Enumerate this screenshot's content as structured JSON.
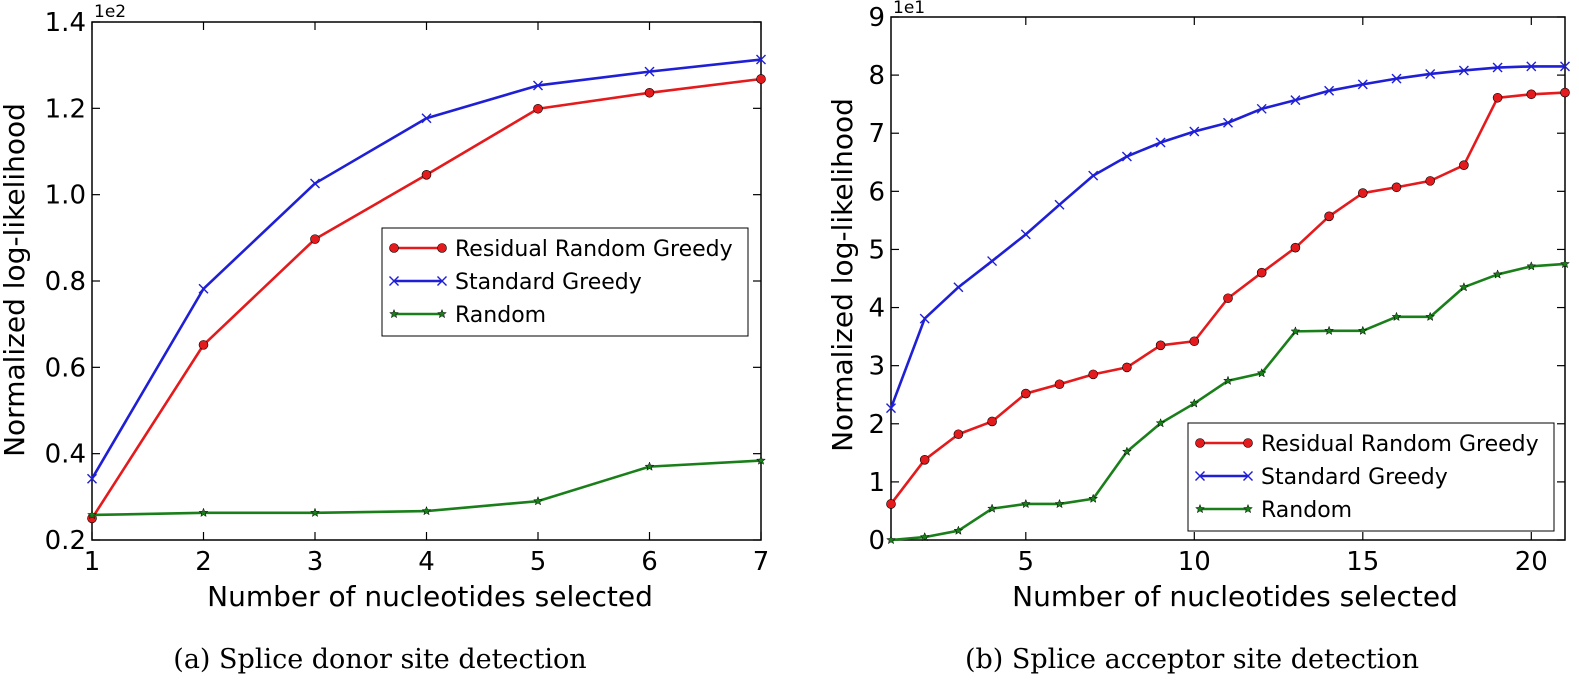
{
  "colors": {
    "residual": "#e41a1c",
    "standard": "#1f1fd6",
    "random": "#1a7f1a"
  },
  "chart_data": [
    {
      "type": "line",
      "caption": "(a) Splice donor site detection",
      "xlabel": "Number of nucleotides selected",
      "ylabel": "Normalized log-likelihood",
      "y_multiplier": "1e2",
      "xlim": [
        1,
        7
      ],
      "ylim": [
        0.2,
        1.4
      ],
      "xticks": [
        1,
        2,
        3,
        4,
        5,
        6,
        7
      ],
      "yticks": [
        0.2,
        0.4,
        0.6,
        0.8,
        1.0,
        1.2,
        1.4
      ],
      "ytick_labels": [
        "0.2",
        "0.4",
        "0.6",
        "0.8",
        "1.0",
        "1.2",
        "1.4"
      ],
      "legend_location": "center-right",
      "x": [
        1,
        2,
        3,
        4,
        5,
        6,
        7
      ],
      "series": [
        {
          "name": "Residual Random Greedy",
          "color": "residual",
          "marker": "circle",
          "values": [
            0.25,
            0.652,
            0.897,
            1.046,
            1.199,
            1.236,
            1.268
          ]
        },
        {
          "name": "Standard Greedy",
          "color": "standard",
          "marker": "x",
          "values": [
            0.342,
            0.782,
            1.026,
            1.177,
            1.253,
            1.285,
            1.313
          ]
        },
        {
          "name": "Random",
          "color": "random",
          "marker": "star",
          "values": [
            0.258,
            0.263,
            0.263,
            0.267,
            0.29,
            0.37,
            0.384
          ]
        }
      ]
    },
    {
      "type": "line",
      "caption": "(b) Splice acceptor site detection",
      "xlabel": "Number of nucleotides selected",
      "ylabel": "Normalized log-likelihood",
      "y_multiplier": "1e1",
      "xlim": [
        1,
        21
      ],
      "ylim": [
        0,
        9
      ],
      "xticks": [
        5,
        10,
        15,
        20
      ],
      "yticks": [
        0,
        1,
        2,
        3,
        4,
        5,
        6,
        7,
        8,
        9
      ],
      "ytick_labels": [
        "0",
        "1",
        "2",
        "3",
        "4",
        "5",
        "6",
        "7",
        "8",
        "9"
      ],
      "legend_location": "lower-right",
      "x": [
        1,
        2,
        3,
        4,
        5,
        6,
        7,
        8,
        9,
        10,
        11,
        12,
        13,
        14,
        15,
        16,
        17,
        18,
        19,
        20,
        21
      ],
      "series": [
        {
          "name": "Residual Random Greedy",
          "color": "residual",
          "marker": "circle",
          "values": [
            0.62,
            1.38,
            1.82,
            2.04,
            2.52,
            2.68,
            2.85,
            2.97,
            3.35,
            3.42,
            4.16,
            4.6,
            5.03,
            5.57,
            5.97,
            6.07,
            6.18,
            6.45,
            7.61,
            7.67,
            7.7
          ]
        },
        {
          "name": "Standard Greedy",
          "color": "standard",
          "marker": "x",
          "values": [
            2.27,
            3.81,
            4.35,
            4.8,
            5.26,
            5.77,
            6.27,
            6.6,
            6.84,
            7.03,
            7.18,
            7.42,
            7.57,
            7.73,
            7.84,
            7.94,
            8.02,
            8.08,
            8.13,
            8.15,
            8.15
          ]
        },
        {
          "name": "Random",
          "color": "random",
          "marker": "star",
          "values": [
            0.0,
            0.05,
            0.16,
            0.54,
            0.62,
            0.62,
            0.71,
            1.52,
            2.01,
            2.35,
            2.74,
            2.87,
            3.59,
            3.6,
            3.6,
            3.84,
            3.84,
            4.35,
            4.57,
            4.71,
            4.75
          ]
        }
      ]
    }
  ]
}
